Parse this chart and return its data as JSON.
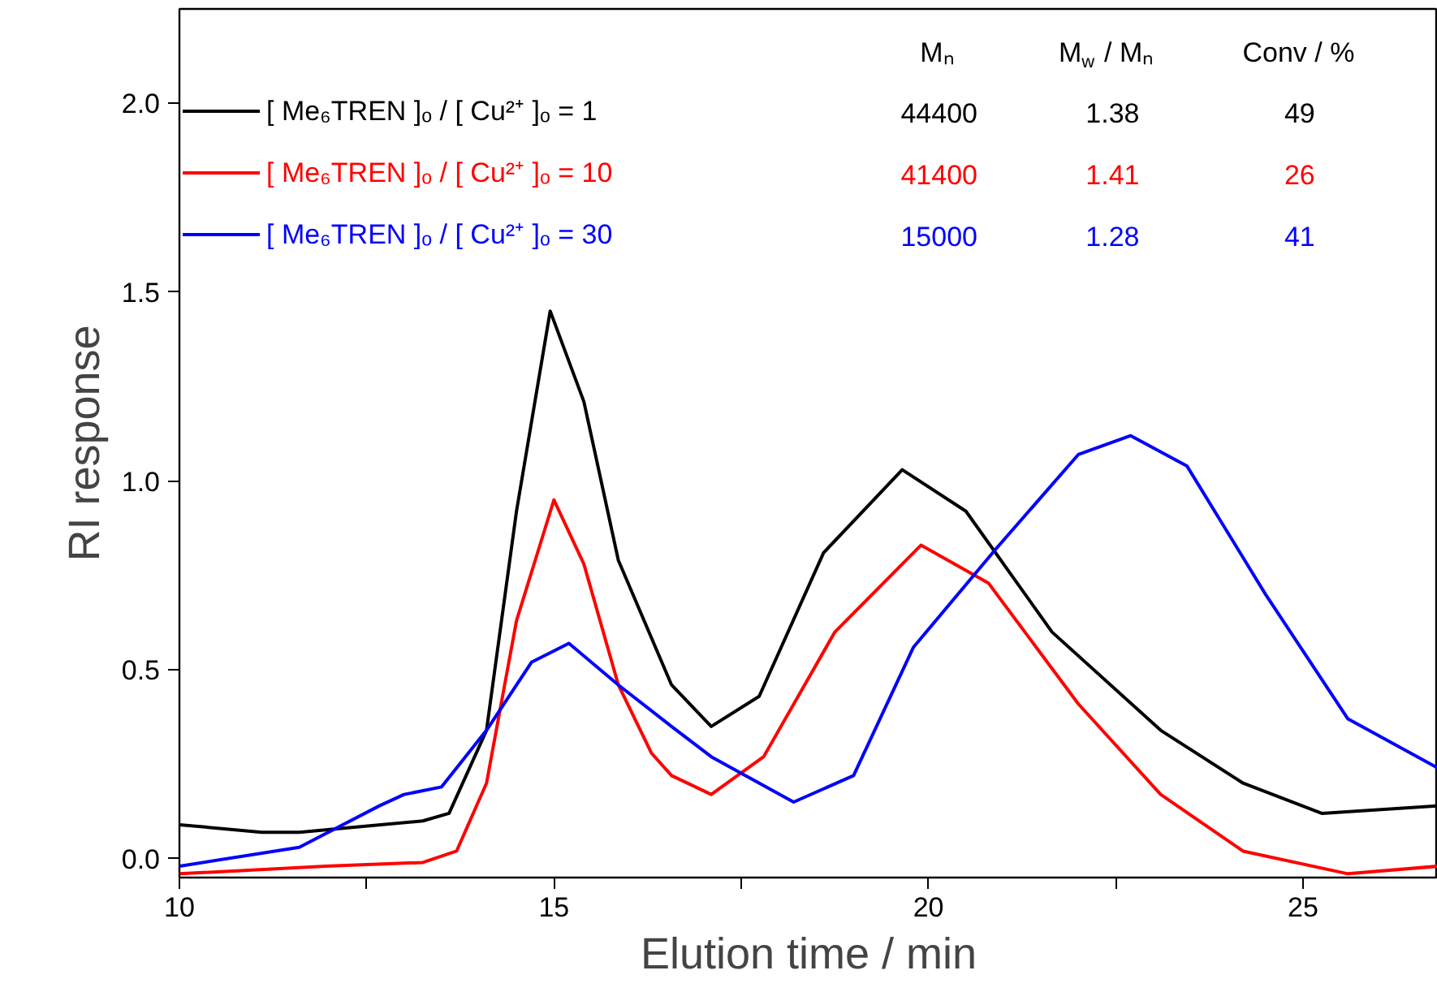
{
  "chart_data": {
    "type": "line",
    "xlabel": "Elution time / min",
    "ylabel": "RI response",
    "xlim": [
      10,
      26.8
    ],
    "ylim": [
      -0.05,
      2.25
    ],
    "xticks": [
      10,
      {
        "value": 12.5,
        "label": null
      },
      15,
      {
        "value": 17.5,
        "label": null
      },
      20,
      {
        "value": 22.5,
        "label": null
      },
      25
    ],
    "yticks": [
      {
        "value": 0,
        "label": "0.0"
      },
      {
        "value": 0.5,
        "label": "0.5"
      },
      {
        "value": 1,
        "label": "1.0"
      },
      {
        "value": 1.5,
        "label": "1.5"
      },
      {
        "value": 2,
        "label": "2.0"
      }
    ],
    "grid": false,
    "legend": "top left",
    "marker": "none",
    "line_style": "solid",
    "annotations": [
      "Mₙ",
      "M$_{w}$ / Mₙ",
      "Conv / %",
      "44400",
      "1.38",
      "49",
      "41400",
      "1.41",
      "26",
      "15000",
      "1.28",
      "41"
    ],
    "series": [
      {
        "name": "[ Me₆TREN ]ₒ / [ Cu²⁺ ]ₒ = 1",
        "color": "#000000",
        "x": [
          10,
          11.1,
          11.6,
          13.25,
          13.6,
          14.1,
          14.5,
          14.95,
          15.4,
          15.86,
          16.57,
          17.1,
          17.74,
          18.6,
          19.65,
          20.5,
          21.65,
          23.1,
          24.2,
          25.25,
          26.8
        ],
        "values": [
          0.09,
          0.07,
          0.07,
          0.1,
          0.12,
          0.34,
          0.92,
          1.45,
          1.21,
          0.79,
          0.46,
          0.35,
          0.43,
          0.81,
          1.03,
          0.92,
          0.6,
          0.34,
          0.2,
          0.12,
          0.14
        ]
      },
      {
        "name": "[ Me₆TREN ]ₒ / [ Cu²⁺ ]ₒ = 10",
        "color": "#ff0000",
        "x": [
          10,
          11.95,
          13.25,
          13.7,
          14.1,
          14.5,
          15.0,
          15.4,
          15.86,
          16.3,
          16.57,
          17.1,
          17.8,
          18.75,
          19.9,
          20.8,
          22.0,
          23.1,
          24.2,
          25.6,
          26.8
        ],
        "values": [
          -0.04,
          -0.02,
          -0.01,
          0.02,
          0.2,
          0.63,
          0.95,
          0.78,
          0.46,
          0.28,
          0.22,
          0.17,
          0.27,
          0.6,
          0.83,
          0.73,
          0.41,
          0.17,
          0.02,
          -0.04,
          -0.02
        ]
      },
      {
        "name": "[ Me₆TREN ]ₒ / [ Cu²⁺ ]ₒ = 30",
        "color": "#0000ff",
        "x": [
          10,
          11.6,
          12.67,
          13.0,
          13.5,
          14.1,
          14.7,
          15.2,
          15.86,
          16.57,
          17.1,
          18.2,
          19.0,
          19.8,
          20.9,
          22.0,
          22.7,
          23.45,
          24.5,
          25.6,
          26.8
        ],
        "values": [
          -0.02,
          0.03,
          0.14,
          0.17,
          0.19,
          0.34,
          0.52,
          0.57,
          0.46,
          0.35,
          0.27,
          0.15,
          0.22,
          0.56,
          0.82,
          1.07,
          1.12,
          1.04,
          0.7,
          0.37,
          0.24
        ]
      }
    ]
  }
}
